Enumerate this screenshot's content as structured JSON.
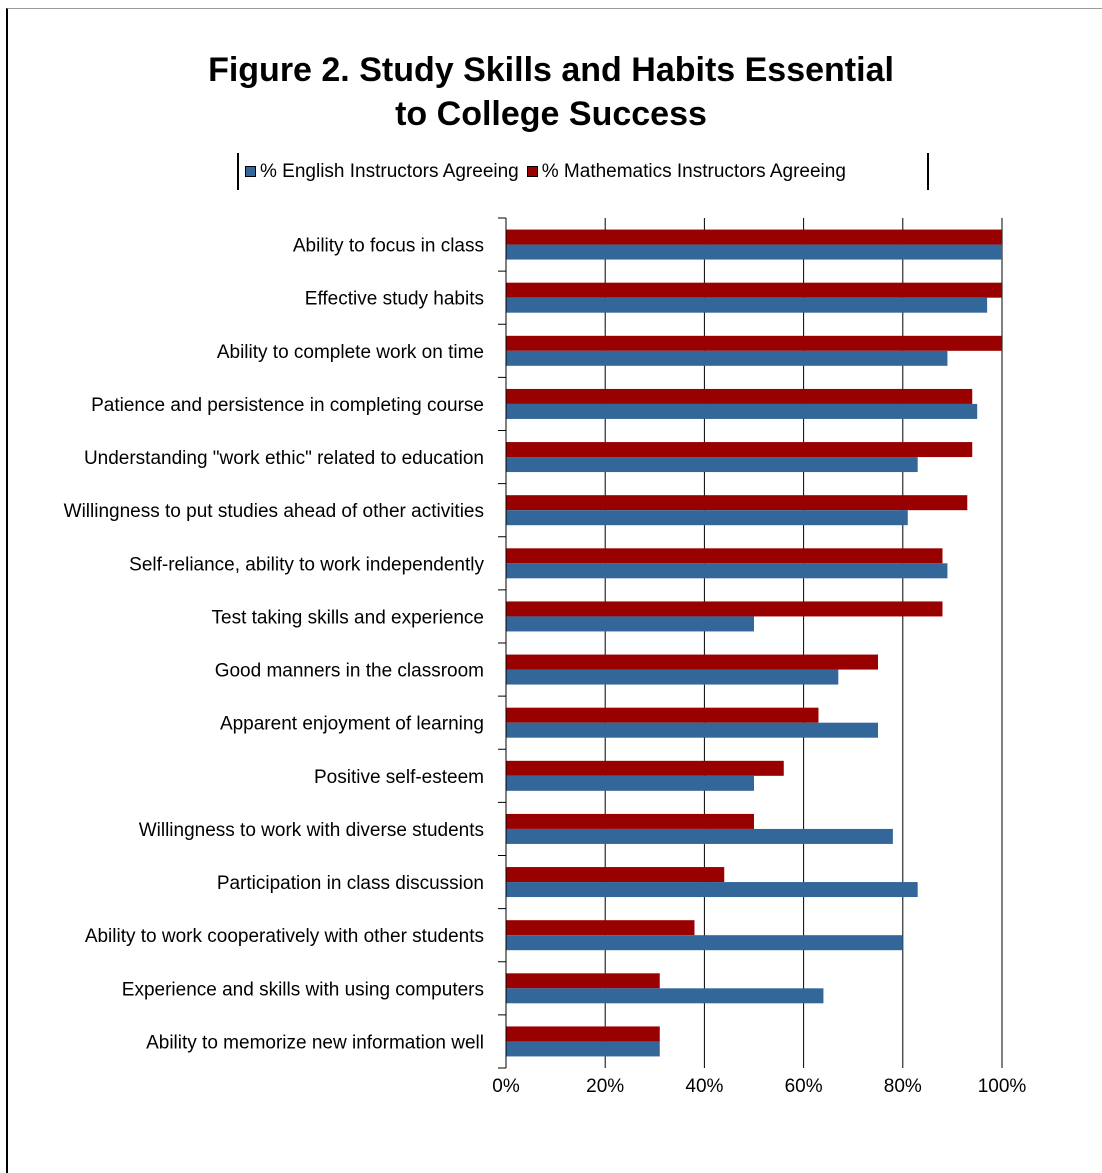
{
  "chart_data": {
    "type": "bar",
    "orientation": "horizontal",
    "title": "Figure 2. Study Skills and Habits Essential to College Success",
    "title_lines": [
      "Figure 2. Study Skills and Habits Essential",
      "to College Success"
    ],
    "categories": [
      "Ability to focus in class",
      "Effective study habits",
      "Ability to complete work on time",
      "Patience and persistence in completing course",
      "Understanding \"work ethic\" related to education",
      "Willingness to put studies ahead of other activities",
      "Self-reliance, ability to work independently",
      "Test taking skills and experience",
      "Good manners in the classroom",
      "Apparent enjoyment of learning",
      "Positive self-esteem",
      "Willingness to work with diverse students",
      "Participation in class discussion",
      "Ability to work cooperatively with other students",
      "Experience and skills with using computers",
      "Ability to memorize new information well"
    ],
    "series": [
      {
        "name": "% English Instructors Agreeing",
        "color": "#336699",
        "values": [
          100,
          97,
          89,
          95,
          83,
          81,
          89,
          50,
          67,
          75,
          50,
          78,
          83,
          80,
          64,
          31
        ]
      },
      {
        "name": "% Mathematics Instructors Agreeing",
        "color": "#990000",
        "values": [
          100,
          100,
          100,
          94,
          94,
          93,
          88,
          88,
          75,
          63,
          56,
          50,
          44,
          38,
          31,
          31
        ]
      }
    ],
    "xlim": [
      0,
      100
    ],
    "x_ticks": [
      "0%",
      "20%",
      "40%",
      "60%",
      "80%",
      "100%"
    ],
    "x_tick_values": [
      0,
      20,
      40,
      60,
      80,
      100
    ],
    "grid": "vertical",
    "legend_position": "top"
  }
}
